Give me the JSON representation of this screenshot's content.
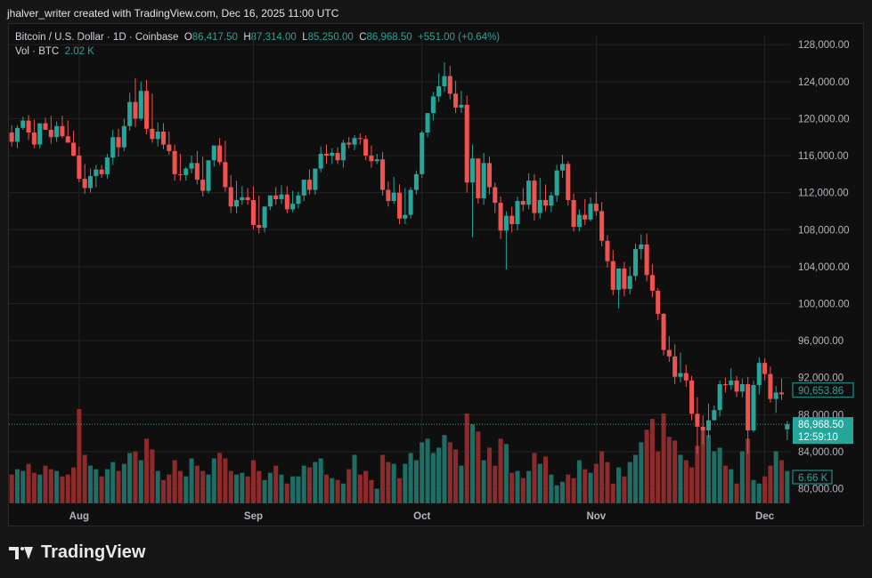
{
  "header": {
    "attribution": "jhalver_writer created with TradingView.com, Dec 16, 2025 11:00 UTC"
  },
  "legend": {
    "symbol": "Bitcoin / U.S. Dollar · 1D · Coinbase",
    "o_label": "O",
    "o_value": "86,417.50",
    "h_label": "H",
    "h_value": "87,314.00",
    "l_label": "L",
    "l_value": "85,250.00",
    "c_label": "C",
    "c_value": "86,968.50",
    "change": "+551.00 (+0.64%)",
    "vol_label": "Vol · BTC",
    "vol_value": "2.02 K"
  },
  "footer": {
    "brand": "TradingView"
  },
  "colors": {
    "up": "#26a69a",
    "down": "#ef5350",
    "up_vol": "#1f6e66",
    "down_vol": "#8c2b2b",
    "grid": "#232323",
    "axis_text": "#b2b5be"
  },
  "chart_data": {
    "type": "candlestick",
    "ylim": [
      79000,
      128500
    ],
    "y_ticks": [
      "128,000.00",
      "124,000.00",
      "120,000.00",
      "116,000.00",
      "112,000.00",
      "108,000.00",
      "104,000.00",
      "100,000.00",
      "96,000.00",
      "92,000.00",
      "88,000.00",
      "84,000.00",
      "80,000.00"
    ],
    "y_tick_values": [
      128000,
      124000,
      120000,
      116000,
      112000,
      108000,
      104000,
      100000,
      96000,
      92000,
      88000,
      84000,
      80000
    ],
    "x_labels": [
      "Aug",
      "Sep",
      "Oct",
      "Nov",
      "Dec"
    ],
    "x_label_days": [
      12,
      43,
      73,
      104,
      134
    ],
    "price_labels": [
      {
        "value": 90653.86,
        "text": "90,653.86",
        "style": "outline"
      },
      {
        "value": 86968.5,
        "text": "86,968.50",
        "sub": "12:59:10",
        "style": "filled"
      }
    ],
    "volume_label": "6.66 K",
    "closes": [
      117500,
      119000,
      119800,
      118500,
      117200,
      119500,
      118800,
      118000,
      119200,
      118100,
      117400,
      116000,
      113500,
      112500,
      113800,
      114500,
      114000,
      115800,
      118000,
      116900,
      119200,
      121800,
      120000,
      123000,
      118900,
      117800,
      118600,
      117200,
      116500,
      114000,
      113900,
      114600,
      115200,
      113400,
      112200,
      115500,
      117100,
      115300,
      112600,
      110500,
      111200,
      111500,
      111200,
      108500,
      108200,
      110500,
      111700,
      111300,
      111800,
      110200,
      110800,
      111700,
      113400,
      112300,
      114600,
      116200,
      116000,
      116300,
      115500,
      117400,
      117200,
      117900,
      117800,
      116000,
      115400,
      115600,
      112300,
      111100,
      112000,
      109200,
      109600,
      112300,
      114000,
      118500,
      120600,
      122400,
      123500,
      124600,
      122700,
      121200,
      121500,
      113100,
      115700,
      111400,
      115200,
      112600,
      110900,
      107900,
      109500,
      108600,
      111100,
      110700,
      113300,
      109800,
      111200,
      110600,
      111700,
      114400,
      115100,
      111200,
      108300,
      109600,
      109100,
      110800,
      110000,
      106800,
      104600,
      101500,
      103800,
      101600,
      103000,
      105900,
      106400,
      103100,
      101400,
      98900,
      95000,
      94300,
      92100,
      92500,
      91700,
      88100,
      86700,
      86300,
      87400,
      88500,
      91300,
      91200,
      91700,
      90500,
      91300,
      86300,
      91200,
      93600,
      92400,
      89700,
      90400,
      90200,
      86968.5
    ],
    "opens": [
      118500,
      117500,
      119000,
      119800,
      118500,
      117200,
      119500,
      118800,
      118000,
      119200,
      118100,
      117400,
      116000,
      113500,
      112500,
      113800,
      114500,
      114000,
      115800,
      118000,
      116900,
      119200,
      121800,
      120000,
      123000,
      118900,
      117800,
      118600,
      117200,
      116500,
      114000,
      113900,
      114600,
      115200,
      113400,
      112200,
      115500,
      117100,
      115300,
      112600,
      110500,
      111200,
      111500,
      111200,
      108500,
      108200,
      110500,
      111700,
      111300,
      111800,
      110200,
      110800,
      111700,
      113400,
      112300,
      114600,
      116200,
      116000,
      116300,
      115500,
      117400,
      117200,
      117900,
      117800,
      116000,
      115400,
      115600,
      112300,
      111100,
      112000,
      109200,
      109600,
      112300,
      114000,
      118500,
      120600,
      122400,
      123500,
      124600,
      122700,
      121200,
      121500,
      113100,
      115700,
      111400,
      115200,
      112600,
      110900,
      107900,
      109500,
      108600,
      111100,
      110700,
      113300,
      109800,
      111200,
      110600,
      111700,
      114400,
      115100,
      111200,
      108300,
      109600,
      109100,
      110800,
      110000,
      106800,
      104600,
      101500,
      103800,
      101600,
      103000,
      105900,
      106400,
      103100,
      101400,
      98900,
      95000,
      94300,
      92100,
      92500,
      91700,
      88100,
      86700,
      86300,
      87400,
      88500,
      91300,
      91200,
      91700,
      90500,
      91300,
      86300,
      91200,
      93600,
      92400,
      89700,
      90400,
      86417.5
    ],
    "highs": [
      119300,
      119300,
      120200,
      120400,
      119900,
      119300,
      120100,
      120300,
      119700,
      120300,
      119800,
      118700,
      117000,
      115100,
      114600,
      115000,
      115000,
      116200,
      118800,
      118900,
      120000,
      122800,
      124400,
      124000,
      124200,
      122700,
      119600,
      119500,
      118600,
      117200,
      116200,
      114800,
      116000,
      116500,
      115900,
      114300,
      116100,
      117900,
      117600,
      113900,
      113300,
      112700,
      112500,
      112700,
      111700,
      109600,
      111600,
      112600,
      112800,
      112700,
      112200,
      112100,
      113400,
      114500,
      113800,
      117000,
      117200,
      116800,
      116900,
      117700,
      118000,
      118200,
      118400,
      118200,
      117100,
      116200,
      116400,
      113200,
      113700,
      112900,
      112500,
      112600,
      114400,
      118700,
      119200,
      122900,
      124900,
      126100,
      125700,
      124100,
      123000,
      122500,
      117200,
      115700,
      116300,
      115900,
      113100,
      111600,
      110000,
      110500,
      111600,
      112500,
      114100,
      114000,
      113600,
      112900,
      112100,
      115000,
      116100,
      115400,
      111900,
      110200,
      111300,
      111500,
      112100,
      111000,
      107400,
      105800,
      102300,
      104500,
      104000,
      106500,
      107500,
      107600,
      104300,
      101700,
      99000,
      96500,
      95600,
      94700,
      93400,
      92200,
      89900,
      87900,
      89200,
      89000,
      91700,
      92000,
      93000,
      92200,
      91900,
      92100,
      91700,
      94200,
      94100,
      93200,
      91100,
      91900,
      87314
    ],
    "lows": [
      117000,
      116800,
      118800,
      117700,
      116800,
      116800,
      118800,
      117300,
      117500,
      117900,
      117500,
      115900,
      113100,
      111900,
      112000,
      112600,
      113600,
      113500,
      115000,
      115900,
      116500,
      118700,
      119100,
      119800,
      118300,
      117400,
      117000,
      116700,
      116100,
      113300,
      113300,
      113300,
      114100,
      112900,
      111600,
      111900,
      114800,
      115000,
      112100,
      109800,
      109800,
      110700,
      110700,
      108000,
      107600,
      107700,
      110100,
      110700,
      110800,
      109800,
      109900,
      110300,
      111100,
      111800,
      111800,
      114200,
      115100,
      115100,
      115100,
      114700,
      116800,
      116600,
      117200,
      115500,
      114700,
      115100,
      111700,
      110500,
      110800,
      108600,
      108600,
      109200,
      111800,
      113600,
      118000,
      119800,
      121800,
      122900,
      122100,
      120600,
      120600,
      112000,
      107200,
      110800,
      110700,
      111800,
      109800,
      107000,
      103700,
      107700,
      107900,
      110000,
      110200,
      109000,
      109200,
      110000,
      109900,
      111000,
      113600,
      110600,
      107800,
      107800,
      108500,
      108900,
      109500,
      106200,
      103900,
      100900,
      99500,
      100800,
      101000,
      102500,
      104800,
      102400,
      100700,
      98200,
      94400,
      93700,
      91300,
      91500,
      91000,
      87400,
      83800,
      84800,
      85600,
      87600,
      87800,
      90400,
      90700,
      89900,
      89900,
      83800,
      86100,
      90200,
      91700,
      89300,
      88200,
      89600,
      85250
    ],
    "volumes": [
      0.32,
      0.38,
      0.36,
      0.44,
      0.34,
      0.32,
      0.42,
      0.38,
      0.36,
      0.3,
      0.32,
      0.4,
      1.05,
      0.54,
      0.42,
      0.38,
      0.3,
      0.38,
      0.46,
      0.36,
      0.44,
      0.56,
      0.58,
      0.48,
      0.72,
      0.6,
      0.36,
      0.26,
      0.32,
      0.48,
      0.36,
      0.3,
      0.5,
      0.42,
      0.36,
      0.32,
      0.5,
      0.56,
      0.5,
      0.36,
      0.32,
      0.34,
      0.3,
      0.48,
      0.36,
      0.26,
      0.34,
      0.42,
      0.32,
      0.22,
      0.3,
      0.3,
      0.42,
      0.4,
      0.46,
      0.5,
      0.32,
      0.28,
      0.26,
      0.22,
      0.38,
      0.54,
      0.32,
      0.36,
      0.26,
      0.16,
      0.54,
      0.46,
      0.44,
      0.28,
      0.44,
      0.56,
      0.48,
      0.68,
      0.72,
      0.56,
      0.62,
      0.76,
      0.68,
      0.6,
      0.42,
      1.0,
      0.88,
      0.8,
      0.48,
      0.62,
      0.42,
      0.72,
      0.66,
      0.34,
      0.36,
      0.28,
      0.36,
      0.56,
      0.44,
      0.52,
      0.32,
      0.2,
      0.24,
      0.32,
      0.28,
      0.48,
      0.38,
      0.34,
      0.44,
      0.58,
      0.46,
      0.22,
      0.4,
      0.3,
      0.46,
      0.54,
      0.68,
      0.82,
      0.94,
      0.58,
      1.0,
      0.74,
      0.7,
      0.54,
      0.48,
      0.4,
      0.64,
      0.82,
      0.76,
      0.58,
      0.62,
      0.42,
      0.38,
      0.22,
      0.58,
      0.72,
      0.26,
      0.22,
      0.3,
      0.42,
      0.58,
      0.48,
      0.36
    ]
  }
}
